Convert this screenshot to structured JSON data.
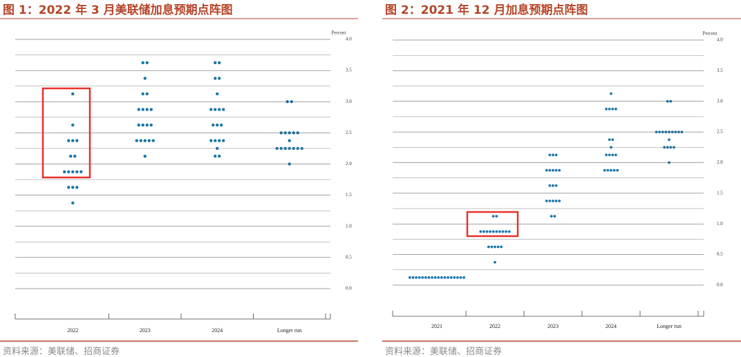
{
  "chart_data": [
    {
      "type": "dot",
      "title": "图 1：2022 年 3 月美联储加息预期点阵图",
      "source": "资料来源：美联储、招商证券",
      "y_label": "Percent",
      "color": "#1a75a8",
      "categories": [
        "2022",
        "2023",
        "2024",
        "Longer run"
      ],
      "values": [
        [
          3.125,
          2.625,
          2.375,
          2.375,
          2.375,
          2.125,
          2.125,
          1.875,
          1.875,
          1.875,
          1.875,
          1.875,
          1.625,
          1.625,
          1.625,
          1.375
        ],
        [
          3.625,
          3.625,
          3.375,
          3.125,
          3.125,
          2.875,
          2.875,
          2.875,
          2.875,
          2.625,
          2.625,
          2.625,
          2.625,
          2.375,
          2.375,
          2.375,
          2.375,
          2.375,
          2.125
        ],
        [
          3.625,
          3.625,
          3.375,
          3.375,
          3.125,
          2.875,
          2.875,
          2.875,
          2.875,
          2.625,
          2.625,
          2.625,
          2.375,
          2.375,
          2.375,
          2.375,
          2.25,
          2.125,
          2.125
        ],
        [
          3.0,
          3.0,
          2.5,
          2.5,
          2.5,
          2.5,
          2.5,
          2.375,
          2.25,
          2.25,
          2.25,
          2.25,
          2.25,
          2.25,
          2.25,
          2.0
        ]
      ],
      "ylim": [
        0,
        4
      ],
      "yticks": [
        {
          "value": 0,
          "label": "0.0"
        },
        0.5,
        {
          "value": 1,
          "label": "1.0"
        },
        1.5,
        {
          "value": 2,
          "label": "2.0"
        },
        2.5,
        {
          "value": 3,
          "label": "3.0"
        },
        3.5,
        {
          "value": 4,
          "label": "4.0"
        }
      ],
      "minor_yticks": [
        0.25,
        0.75,
        1.25,
        1.75,
        2.25,
        2.75,
        3.25,
        3.75
      ],
      "grid": true
    },
    {
      "type": "dot",
      "title": "图 2：2021 年 12 月加息预期点阵图",
      "source": "资料来源：美联储、招商证券",
      "y_label": "Percent",
      "color": "#1a75a8",
      "categories": [
        "2021",
        "2022",
        "2023",
        "2024",
        "Longer run"
      ],
      "values": [
        [
          0.125,
          0.125,
          0.125,
          0.125,
          0.125,
          0.125,
          0.125,
          0.125,
          0.125,
          0.125,
          0.125,
          0.125,
          0.125,
          0.125,
          0.125,
          0.125,
          0.125,
          0.125
        ],
        [
          1.125,
          1.125,
          0.875,
          0.875,
          0.875,
          0.875,
          0.875,
          0.875,
          0.875,
          0.875,
          0.875,
          0.875,
          0.625,
          0.625,
          0.625,
          0.625,
          0.625,
          0.375
        ],
        [
          2.125,
          2.125,
          2.125,
          1.875,
          1.875,
          1.875,
          1.875,
          1.875,
          1.625,
          1.625,
          1.625,
          1.375,
          1.375,
          1.375,
          1.375,
          1.375,
          1.125,
          1.125
        ],
        [
          3.125,
          2.875,
          2.875,
          2.875,
          2.875,
          2.375,
          2.375,
          2.25,
          2.125,
          2.125,
          2.125,
          2.125,
          1.875,
          1.875,
          1.875,
          1.875,
          1.875
        ],
        [
          3.0,
          3.0,
          2.5,
          2.5,
          2.5,
          2.5,
          2.5,
          2.5,
          2.5,
          2.5,
          2.5,
          2.375,
          2.25,
          2.25,
          2.25,
          2.25,
          2.0
        ]
      ],
      "ylim": [
        0,
        4
      ],
      "yticks": [
        {
          "value": 0,
          "label": "0.0"
        },
        0.5,
        {
          "value": 1,
          "label": "1.0"
        },
        1.5,
        {
          "value": 2,
          "label": "2.0"
        },
        2.5,
        {
          "value": 3,
          "label": "3.0"
        },
        3.5,
        {
          "value": 4,
          "label": "4.0"
        }
      ],
      "minor_yticks": [
        0.25,
        0.75,
        1.25,
        1.75,
        2.25,
        2.75,
        3.25,
        3.75
      ],
      "grid": true
    }
  ]
}
